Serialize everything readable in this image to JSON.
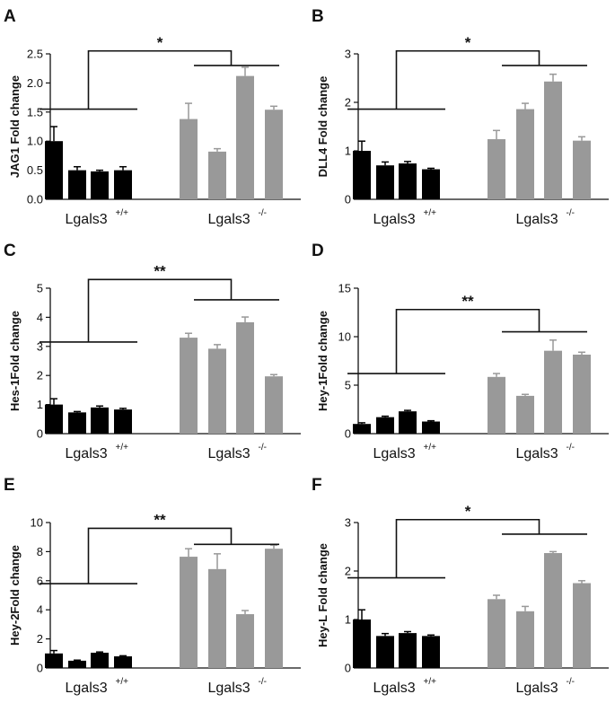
{
  "colors": {
    "wildtype": "#000000",
    "knockout": "#999999",
    "line": "#111111"
  },
  "chart_data": [
    {
      "type": "bar",
      "panel": "A",
      "ylabel": "JAG1 Fold change",
      "ylim": [
        0,
        2.5
      ],
      "yticks": [
        "0.0",
        "0.5",
        "1.0",
        "1.5",
        "2.0",
        "2.5"
      ],
      "groups": [
        {
          "name": "Lgals3",
          "sup": "+/+"
        },
        {
          "name": "Lgals3",
          "sup": "-/-"
        }
      ],
      "series": [
        {
          "name": "Lgals3 +/+",
          "values": [
            1.0,
            0.5,
            0.48,
            0.5
          ],
          "errors": [
            0.25,
            0.06,
            0.02,
            0.06
          ]
        },
        {
          "name": "Lgals3 -/-",
          "values": [
            1.38,
            0.82,
            2.12,
            1.54
          ],
          "errors": [
            0.27,
            0.05,
            0.15,
            0.06
          ]
        }
      ],
      "significance": "*",
      "bracket_levels": [
        1.55,
        2.3,
        2.55
      ]
    },
    {
      "type": "bar",
      "panel": "B",
      "ylabel": "DLL4 Fold  change",
      "ylim": [
        0,
        3
      ],
      "yticks": [
        "0",
        "1",
        "2",
        "3"
      ],
      "groups": [
        {
          "name": "Lgals3",
          "sup": "+/+"
        },
        {
          "name": "Lgals3",
          "sup": "-/-"
        }
      ],
      "series": [
        {
          "name": "Lgals3 +/+",
          "values": [
            1.0,
            0.7,
            0.74,
            0.62
          ],
          "errors": [
            0.2,
            0.07,
            0.04,
            0.02
          ]
        },
        {
          "name": "Lgals3 -/-",
          "values": [
            1.24,
            1.86,
            2.43,
            1.21
          ],
          "errors": [
            0.18,
            0.12,
            0.15,
            0.08
          ]
        }
      ],
      "significance": "*",
      "bracket_levels": [
        1.86,
        2.76,
        3.06
      ]
    },
    {
      "type": "bar",
      "panel": "C",
      "ylabel": "Hes-1Fold change",
      "ylim": [
        0,
        5
      ],
      "yticks": [
        "0",
        "1",
        "2",
        "3",
        "4",
        "5"
      ],
      "groups": [
        {
          "name": "Lgals3",
          "sup": "+/+"
        },
        {
          "name": "Lgals3",
          "sup": "-/-"
        }
      ],
      "series": [
        {
          "name": "Lgals3 +/+",
          "values": [
            1.0,
            0.73,
            0.9,
            0.83
          ],
          "errors": [
            0.2,
            0.03,
            0.05,
            0.04
          ]
        },
        {
          "name": "Lgals3 -/-",
          "values": [
            3.3,
            2.92,
            3.83,
            1.97
          ],
          "errors": [
            0.15,
            0.14,
            0.18,
            0.06
          ]
        }
      ],
      "significance": "**",
      "bracket_levels": [
        3.15,
        4.6,
        5.3
      ]
    },
    {
      "type": "bar",
      "panel": "D",
      "ylabel": "Hey-1Fold change",
      "ylim": [
        0,
        15
      ],
      "yticks": [
        "0",
        "5",
        "10",
        "15"
      ],
      "groups": [
        {
          "name": "Lgals3",
          "sup": "+/+"
        },
        {
          "name": "Lgals3",
          "sup": "-/-"
        }
      ],
      "series": [
        {
          "name": "Lgals3 +/+",
          "values": [
            1.0,
            1.7,
            2.3,
            1.25
          ],
          "errors": [
            0.12,
            0.1,
            0.1,
            0.08
          ]
        },
        {
          "name": "Lgals3 -/-",
          "values": [
            5.85,
            3.9,
            8.55,
            8.15
          ],
          "errors": [
            0.35,
            0.15,
            1.1,
            0.25
          ]
        }
      ],
      "significance": "**",
      "bracket_levels": [
        6.2,
        10.5,
        12.8
      ]
    },
    {
      "type": "bar",
      "panel": "E",
      "ylabel": "Hey-2Fold  change",
      "ylim": [
        0,
        10
      ],
      "yticks": [
        "0",
        "2",
        "4",
        "6",
        "8",
        "10"
      ],
      "groups": [
        {
          "name": "Lgals3",
          "sup": "+/+"
        },
        {
          "name": "Lgals3",
          "sup": "-/-"
        }
      ],
      "series": [
        {
          "name": "Lgals3 +/+",
          "values": [
            1.0,
            0.5,
            1.05,
            0.8
          ],
          "errors": [
            0.2,
            0.04,
            0.05,
            0.04
          ]
        },
        {
          "name": "Lgals3 -/-",
          "values": [
            7.65,
            6.8,
            3.7,
            8.2
          ],
          "errors": [
            0.55,
            1.05,
            0.25,
            0.25
          ]
        }
      ],
      "significance": "**",
      "bracket_levels": [
        5.8,
        8.5,
        9.6
      ]
    },
    {
      "type": "bar",
      "panel": "F",
      "ylabel": "Hey-L Fold  change",
      "ylim": [
        0,
        3
      ],
      "yticks": [
        "0",
        "1",
        "2",
        "3"
      ],
      "groups": [
        {
          "name": "Lgals3",
          "sup": "+/+"
        },
        {
          "name": "Lgals3",
          "sup": "-/-"
        }
      ],
      "series": [
        {
          "name": "Lgals3 +/+",
          "values": [
            1.0,
            0.66,
            0.72,
            0.66
          ],
          "errors": [
            0.2,
            0.05,
            0.03,
            0.02
          ]
        },
        {
          "name": "Lgals3 -/-",
          "values": [
            1.42,
            1.17,
            2.37,
            1.75
          ],
          "errors": [
            0.08,
            0.1,
            0.03,
            0.05
          ]
        }
      ],
      "significance": "*",
      "bracket_levels": [
        1.86,
        2.76,
        3.06
      ]
    }
  ]
}
